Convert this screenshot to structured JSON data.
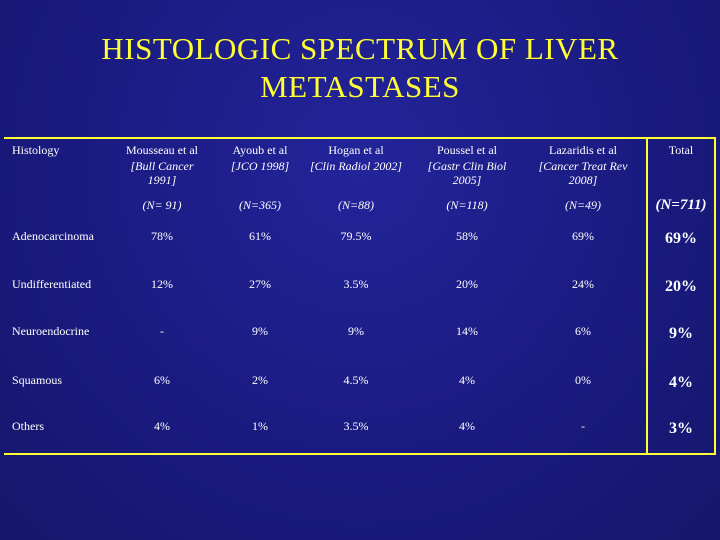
{
  "title": {
    "line1": "HISTOLOGIC  SPECTRUM  OF  LIVER",
    "line2": "METASTASES"
  },
  "table": {
    "row_header_label": "Histology",
    "columns": [
      {
        "author": "Mousseau et al",
        "journal": "[Bull Cancer 1991]",
        "n": "(N= 91)"
      },
      {
        "author": "Ayoub et al",
        "journal": "[JCO 1998]",
        "n": "(N=365)"
      },
      {
        "author": "Hogan et al",
        "journal": "[Clin Radiol 2002]",
        "n": "(N=88)"
      },
      {
        "author": "Poussel  et al",
        "journal": "[Gastr Clin Biol 2005]",
        "n": "(N=118)"
      },
      {
        "author": "Lazaridis  et al",
        "journal": "[Cancer Treat Rev 2008]",
        "n": "(N=49)"
      }
    ],
    "total": {
      "label": "Total",
      "n": "(N=711)"
    },
    "rows": [
      {
        "label": "Adenocarcinoma",
        "values": [
          "78%",
          "61%",
          "79.5%",
          "58%",
          "69%"
        ],
        "total": "69%"
      },
      {
        "label": "Undifferentiated",
        "values": [
          "12%",
          "27%",
          "3.5%",
          "20%",
          "24%"
        ],
        "total": "20%"
      },
      {
        "label": "Neuroendocrine",
        "values": [
          "-",
          "9%",
          "9%",
          "14%",
          "6%"
        ],
        "total": "9%"
      },
      {
        "label": "Squamous",
        "values": [
          "6%",
          "2%",
          "4.5%",
          "4%",
          "0%"
        ],
        "total": "4%"
      },
      {
        "label": "Others",
        "values": [
          "4%",
          "1%",
          "3.5%",
          "4%",
          "-"
        ],
        "total": "3%"
      }
    ]
  },
  "colors": {
    "background": "#1b1c83",
    "accent": "#ffff33",
    "text": "#ffffff"
  }
}
